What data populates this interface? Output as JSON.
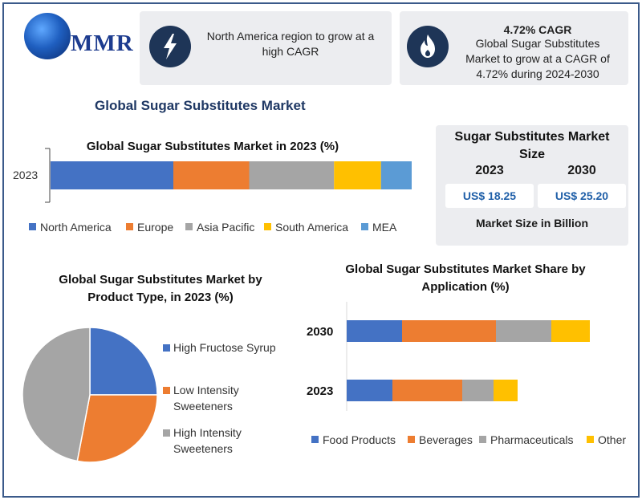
{
  "brand": {
    "name": "MMR"
  },
  "cards": {
    "card1": {
      "text": "North America region to grow at a high CAGR",
      "icon": "lightning-icon"
    },
    "card2": {
      "headline": "4.72% CAGR",
      "text": "Global Sugar Substitutes Market to grow at a CAGR of 4.72% during 2024-2030",
      "icon": "flame-icon"
    }
  },
  "main_title": "Global Sugar Substitutes Market",
  "market_size": {
    "title": "Sugar Substitutes Market Size",
    "years": [
      "2023",
      "2030"
    ],
    "values": [
      "US$ 18.25",
      "US$ 25.20"
    ],
    "note": "Market Size in Billion"
  },
  "colors": {
    "blue": "#4472c4",
    "orange": "#ed7d31",
    "gray": "#a5a5a5",
    "yellow": "#ffc000",
    "lightblue": "#5b9bd5"
  },
  "chart_data": [
    {
      "type": "bar",
      "orientation": "horizontal-stacked",
      "title": "Global Sugar Substitutes Market in 2023 (%)",
      "categories": [
        "2023"
      ],
      "series": [
        {
          "name": "North America",
          "values": [
            34
          ]
        },
        {
          "name": "Europe",
          "values": [
            21
          ]
        },
        {
          "name": "Asia Pacific",
          "values": [
            23.5
          ]
        },
        {
          "name": "South America",
          "values": [
            13
          ]
        },
        {
          "name": "MEA",
          "values": [
            8.5
          ]
        }
      ],
      "legend": "bottom"
    },
    {
      "type": "pie",
      "title": "Global Sugar Substitutes Market by Product Type, in 2023 (%)",
      "labels": [
        "High Fructose Syrup",
        "Low Intensity Sweeteners",
        "High Intensity Sweeteners"
      ],
      "values": [
        25,
        28,
        47
      ],
      "legend": "right"
    },
    {
      "type": "bar",
      "orientation": "horizontal-stacked",
      "title": "Global Sugar Substitutes Market Share by Application (%)",
      "categories": [
        "2030",
        "2023"
      ],
      "series": [
        {
          "name": "Food Products",
          "values": [
            23,
            19
          ]
        },
        {
          "name": "Beverages",
          "values": [
            39,
            29
          ]
        },
        {
          "name": "Pharmaceuticals",
          "values": [
            23,
            13
          ]
        },
        {
          "name": "Other",
          "values": [
            16,
            10
          ]
        }
      ],
      "legend": "bottom"
    }
  ]
}
